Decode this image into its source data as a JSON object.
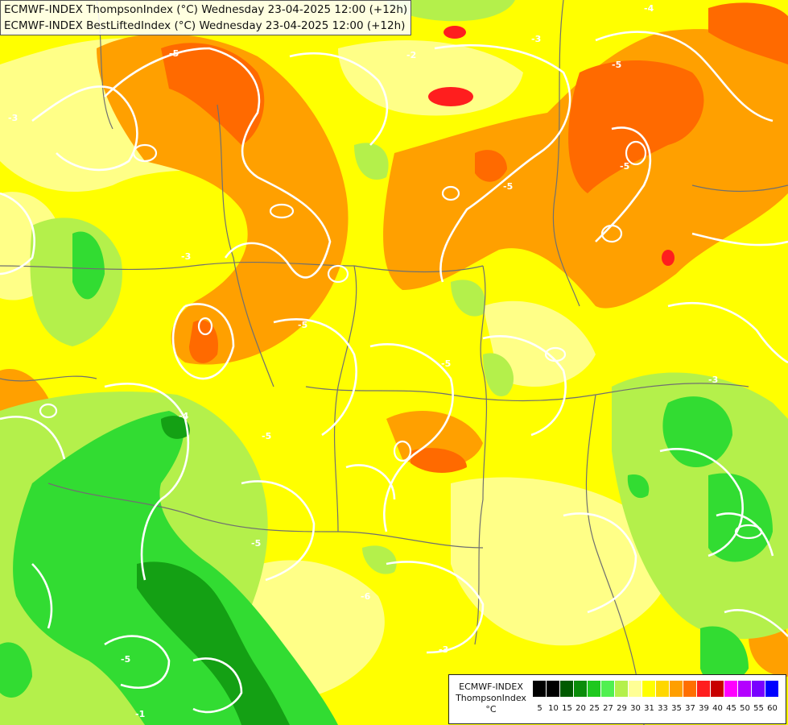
{
  "map_title": {
    "line1": "ECMWF-INDEX ThompsonIndex (°C) Wednesday 23-04-2025 12:00 (+12h)",
    "line2": "ECMWF-INDEX BestLiftedIndex (°C) Wednesday 23-04-2025 12:00 (+12h)"
  },
  "legend": {
    "title_line1": "ECMWF-INDEX",
    "title_line2": "ThompsonIndex",
    "unit": "°C",
    "ticks": [
      "5",
      "10",
      "15",
      "20",
      "25",
      "27",
      "29",
      "30",
      "31",
      "33",
      "35",
      "37",
      "39",
      "40",
      "45",
      "50",
      "55",
      "60"
    ],
    "colors": [
      "#000000",
      "#000000",
      "#000000",
      "#000000",
      "#005a00",
      "#0a8c0a",
      "#1ec81e",
      "#50f050",
      "#b4f04b",
      "#ffff96",
      "#ffff00",
      "#ffd700",
      "#ff9f00",
      "#ff6f00",
      "#ff1e1e",
      "#c80000",
      "#ff00ff",
      "#b400ff",
      "#7800ff",
      "#0000ff"
    ]
  },
  "contour_labels": [
    "-5",
    "-5",
    "-5",
    "-5",
    "-5",
    "-5",
    "-5",
    "-5",
    "-5",
    "-4",
    "-4",
    "-3",
    "-3",
    "-3",
    "-3",
    "-3",
    "-2",
    "-1",
    "-6"
  ],
  "colors": {
    "background_yellow": "#ffff00",
    "light_yellow": "#ffff96",
    "orange": "#ffa000",
    "red_orange": "#ff6a00",
    "red": "#ff1e1e",
    "light_green": "#b4f04b",
    "green": "#32dc32",
    "dark_green": "#14a014",
    "contour": "#ffffff",
    "border": "#707070"
  }
}
